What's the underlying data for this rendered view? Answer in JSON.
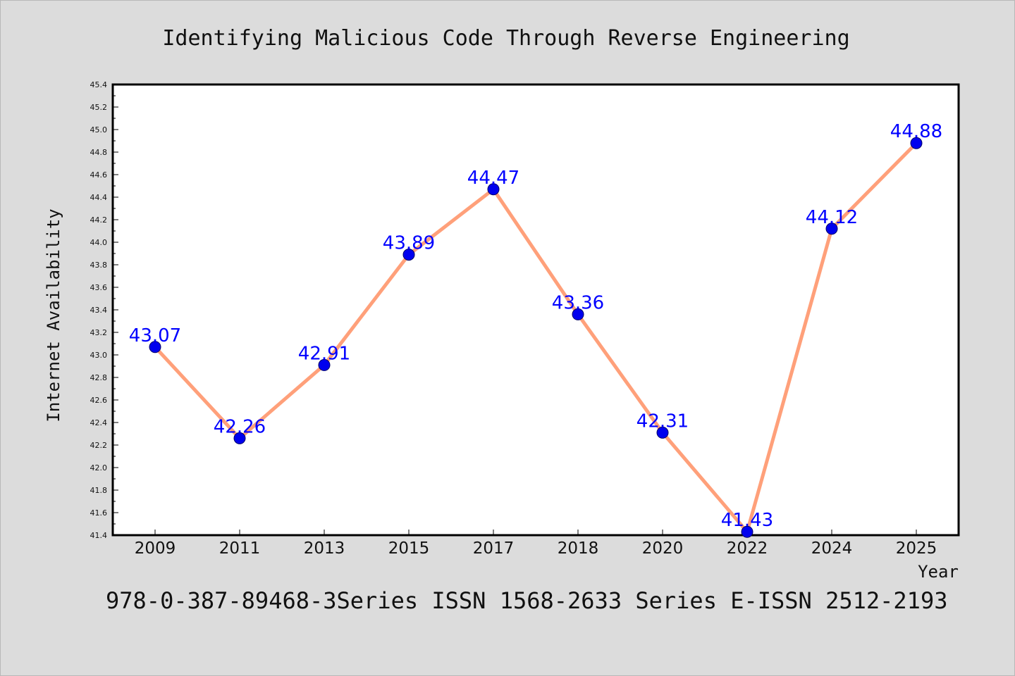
{
  "chart_data": {
    "type": "line",
    "title": "Identifying Malicious Code Through Reverse Engineering",
    "xlabel": "Year",
    "ylabel": "Internet Availability",
    "footer": "978-0-387-89468-3Series ISSN 1568-2633 Series E-ISSN 2512-2193",
    "categories": [
      "2009",
      "2011",
      "2013",
      "2015",
      "2017",
      "2018",
      "2020",
      "2022",
      "2024",
      "2025"
    ],
    "values": [
      43.07,
      42.26,
      42.91,
      43.89,
      44.47,
      43.36,
      42.31,
      41.43,
      44.12,
      44.88
    ],
    "value_labels": [
      "43.07",
      "42.26",
      "42.91",
      "43.89",
      "44.47",
      "43.36",
      "42.31",
      "41.43",
      "44.12",
      "44.88"
    ],
    "ylim": [
      41.4,
      45.4
    ],
    "yticks": [
      "41.4",
      "41.6",
      "41.8",
      "42.0",
      "42.2",
      "42.4",
      "42.6",
      "42.8",
      "43.0",
      "43.2",
      "43.4",
      "43.6",
      "43.8",
      "44.0",
      "44.2",
      "44.4",
      "44.6",
      "44.8",
      "45.0",
      "45.2",
      "45.4"
    ],
    "grid": false,
    "colors": {
      "line": "#ffa07a",
      "marker": "#0000ee",
      "label": "#0000ff",
      "background": "#dcdcdc",
      "plot_background": "#ffffff"
    }
  }
}
